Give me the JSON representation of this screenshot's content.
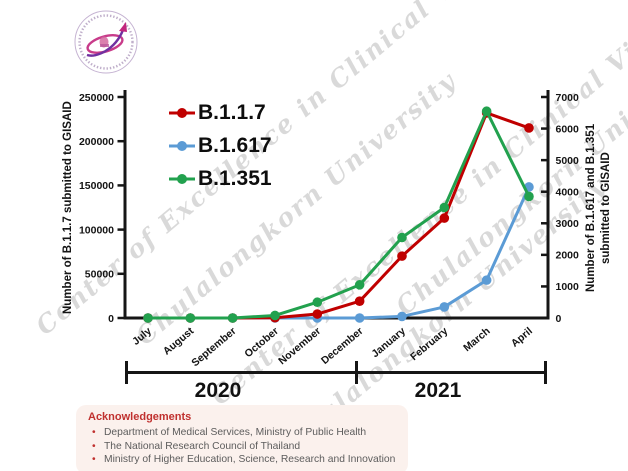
{
  "watermark": {
    "phrases": [
      "Center of Excellence in Clinical Virology",
      "Chulalongkorn University"
    ],
    "color": "#808080"
  },
  "logo": {
    "name": "center-of-excellence-in-clinical-virology-emblem",
    "accent_magenta": "#c2267d",
    "accent_purple": "#7030a0"
  },
  "chart_data": {
    "type": "line",
    "categories": [
      "July",
      "August",
      "September",
      "October",
      "November",
      "December",
      "January",
      "February",
      "March",
      "April"
    ],
    "series": [
      {
        "name": "B.1.1.7",
        "color": "#c00000",
        "axis": "left",
        "values": [
          0,
          0,
          0,
          300,
          4500,
          19000,
          70000,
          113000,
          232000,
          215000
        ]
      },
      {
        "name": "B.1.617",
        "color": "#5b9bd5",
        "axis": "right",
        "values": [
          0,
          0,
          0,
          0,
          0,
          0,
          50,
          350,
          1200,
          4150
        ]
      },
      {
        "name": "B.1.351",
        "color": "#22a14e",
        "axis": "right",
        "values": [
          0,
          0,
          0,
          80,
          500,
          1050,
          2550,
          3500,
          6550,
          3850
        ]
      }
    ],
    "left_axis": {
      "title": "Number of B.1.1.7 submitted to GISAID",
      "min": 0,
      "max": 250000,
      "ticks": [
        0,
        50000,
        100000,
        150000,
        200000,
        250000
      ]
    },
    "right_axis": {
      "title_line1": "Number of B.1.617 and B.1.351",
      "title_line2": "submitted to GISAID",
      "min": 0,
      "max": 7000,
      "ticks": [
        0,
        1000,
        2000,
        3000,
        4000,
        5000,
        6000,
        7000
      ]
    },
    "legend": {
      "position": "top-left-inside"
    },
    "grid": false
  },
  "timeline": {
    "years": [
      "2020",
      "2021"
    ]
  },
  "acknowledgements": {
    "title": "Acknowledgements",
    "items": [
      "Department of Medical Services, Ministry of Public Health",
      "The National Research Council of Thailand",
      "Ministry of Higher Education, Science, Research and Innovation"
    ]
  }
}
